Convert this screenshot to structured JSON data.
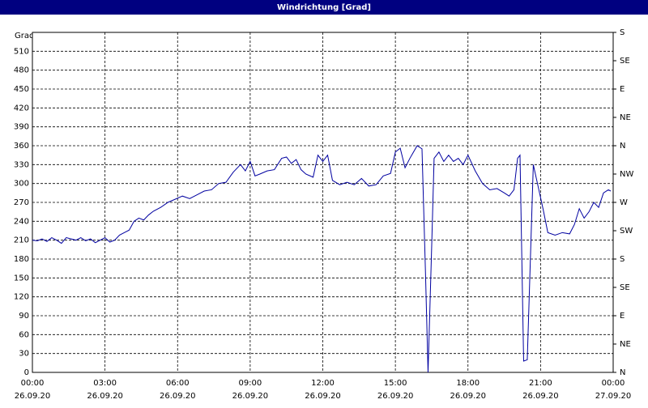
{
  "chart_data": {
    "type": "line",
    "title": "Windrichtung [Grad]",
    "y_label": "Grad",
    "x": [
      0,
      0.2,
      0.4,
      0.6,
      0.8,
      1.0,
      1.2,
      1.4,
      1.6,
      1.8,
      2.0,
      2.2,
      2.4,
      2.6,
      2.8,
      3.0,
      3.2,
      3.4,
      3.6,
      3.8,
      4.0,
      4.2,
      4.4,
      4.6,
      4.8,
      5.0,
      5.3,
      5.6,
      5.9,
      6.2,
      6.5,
      6.8,
      7.1,
      7.4,
      7.7,
      8.0,
      8.3,
      8.6,
      8.8,
      9.0,
      9.2,
      9.4,
      9.7,
      10.0,
      10.3,
      10.5,
      10.7,
      10.9,
      11.1,
      11.3,
      11.6,
      11.8,
      12.0,
      12.2,
      12.4,
      12.7,
      13.0,
      13.3,
      13.6,
      13.9,
      14.2,
      14.5,
      14.8,
      15.0,
      15.2,
      15.4,
      15.6,
      15.9,
      16.1,
      16.25,
      16.35,
      16.5,
      16.6,
      16.8,
      17.0,
      17.2,
      17.4,
      17.6,
      17.8,
      18.0,
      18.3,
      18.6,
      18.9,
      19.2,
      19.5,
      19.7,
      19.9,
      20.05,
      20.15,
      20.3,
      20.45,
      20.7,
      20.9,
      21.1,
      21.3,
      21.6,
      21.9,
      22.2,
      22.4,
      22.6,
      22.8,
      23.0,
      23.2,
      23.4,
      23.6,
      23.8,
      23.9
    ],
    "series": [
      {
        "name": "Windrichtung",
        "color": "#0000a0",
        "values": [
          210,
          209,
          212,
          208,
          214,
          210,
          205,
          214,
          212,
          210,
          214,
          209,
          212,
          206,
          210,
          214,
          207,
          210,
          218,
          222,
          226,
          240,
          245,
          242,
          250,
          256,
          262,
          270,
          275,
          280,
          276,
          282,
          288,
          290,
          300,
          302,
          318,
          330,
          320,
          335,
          312,
          315,
          320,
          322,
          340,
          342,
          332,
          338,
          322,
          315,
          310,
          345,
          335,
          345,
          305,
          298,
          302,
          298,
          308,
          296,
          298,
          312,
          316,
          350,
          356,
          325,
          340,
          360,
          355,
          150,
          0,
          200,
          340,
          350,
          335,
          345,
          335,
          340,
          330,
          345,
          320,
          300,
          290,
          292,
          285,
          280,
          290,
          340,
          345,
          18,
          20,
          330,
          295,
          260,
          222,
          218,
          222,
          220,
          235,
          260,
          245,
          255,
          270,
          262,
          285,
          290,
          288
        ]
      }
    ],
    "xlim": [
      0,
      24
    ],
    "xticks": [
      {
        "value": 0,
        "label": "00:00",
        "date": "26.09.20"
      },
      {
        "value": 3,
        "label": "03:00",
        "date": "26.09.20"
      },
      {
        "value": 6,
        "label": "06:00",
        "date": "26.09.20"
      },
      {
        "value": 9,
        "label": "09:00",
        "date": "26.09.20"
      },
      {
        "value": 12,
        "label": "12:00",
        "date": "26.09.20"
      },
      {
        "value": 15,
        "label": "15:00",
        "date": "26.09.20"
      },
      {
        "value": 18,
        "label": "18:00",
        "date": "26.09.20"
      },
      {
        "value": 21,
        "label": "21:00",
        "date": "26.09.20"
      },
      {
        "value": 24,
        "label": "00:00",
        "date": "27.09.20"
      }
    ],
    "ylim": [
      0,
      540
    ],
    "yticks": [
      0,
      30,
      60,
      90,
      120,
      150,
      180,
      210,
      240,
      270,
      300,
      330,
      360,
      390,
      420,
      450,
      480,
      510
    ],
    "y2lim": [
      0,
      540
    ],
    "y2ticks": [
      {
        "value": 0,
        "label": "N"
      },
      {
        "value": 45,
        "label": "NE"
      },
      {
        "value": 90,
        "label": "E"
      },
      {
        "value": 135,
        "label": "SE"
      },
      {
        "value": 180,
        "label": "S"
      },
      {
        "value": 225,
        "label": "SW"
      },
      {
        "value": 270,
        "label": "W"
      },
      {
        "value": 315,
        "label": "NW"
      },
      {
        "value": 360,
        "label": "N"
      },
      {
        "value": 405,
        "label": "NE"
      },
      {
        "value": 450,
        "label": "E"
      },
      {
        "value": 495,
        "label": "SE"
      },
      {
        "value": 540,
        "label": "S"
      }
    ],
    "grid": true
  }
}
